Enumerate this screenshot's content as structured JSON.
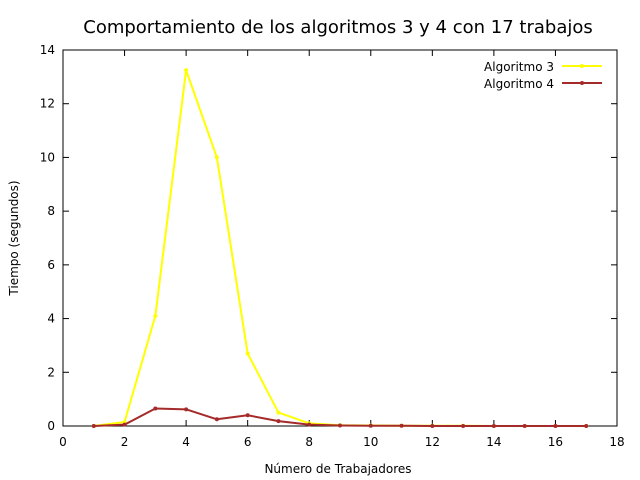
{
  "chart_data": {
    "type": "line",
    "title": "Comportamiento de los algoritmos 3 y 4 con 17 trabajos",
    "xlabel": "Número de Trabajadores",
    "ylabel": "Tiempo (segundos)",
    "xlim": [
      0,
      18
    ],
    "ylim": [
      0,
      14
    ],
    "xticks": [
      0,
      2,
      4,
      6,
      8,
      10,
      12,
      14,
      16,
      18
    ],
    "yticks": [
      0,
      2,
      4,
      6,
      8,
      10,
      12,
      14
    ],
    "grid": false,
    "legend_position": "top-right",
    "x": [
      1,
      2,
      3,
      4,
      5,
      6,
      7,
      8,
      9,
      10,
      11,
      12,
      13,
      14,
      15,
      16,
      17
    ],
    "series": [
      {
        "name": "Algoritmo 3",
        "color": "#ffff00",
        "values": [
          0.0,
          0.15,
          4.1,
          13.25,
          10.0,
          2.7,
          0.5,
          0.1,
          0.03,
          0.02,
          0.01,
          0.01,
          0.01,
          0.0,
          0.0,
          0.0,
          0.0
        ]
      },
      {
        "name": "Algoritmo 4",
        "color": "#a52a2a",
        "values": [
          0.0,
          0.05,
          0.65,
          0.62,
          0.25,
          0.4,
          0.18,
          0.05,
          0.02,
          0.01,
          0.01,
          0.0,
          0.0,
          0.0,
          0.0,
          0.0,
          0.0
        ]
      }
    ]
  }
}
